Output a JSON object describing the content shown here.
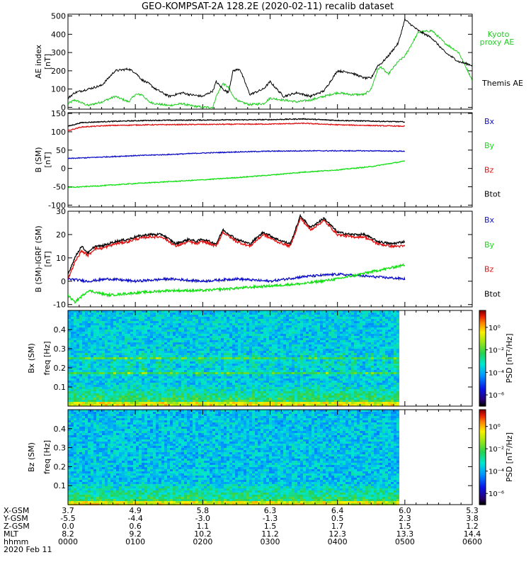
{
  "title": "GEO-KOMPSAT-2A 128.2E (2020-02-11) recalib dataset",
  "colors": {
    "black": "#000000",
    "red": "#e01010",
    "green": "#10e010",
    "blue": "#1010c8",
    "ae_green": "#22cc22"
  },
  "chart_data": [
    {
      "type": "line",
      "id": "ae",
      "ylabel": "AE index [nT]",
      "ylim": [
        -10,
        510
      ],
      "yticks": [
        0,
        100,
        200,
        300,
        400,
        500
      ],
      "xlim": [
        0,
        6
      ],
      "series": [
        {
          "name": "Kyoto proxy AE",
          "legend": [
            "Kyoto",
            "proxy AE"
          ],
          "color": "#22cc22",
          "x": [
            0,
            0.1,
            0.3,
            0.5,
            0.7,
            0.9,
            1.0,
            1.1,
            1.2,
            1.3,
            1.5,
            1.7,
            1.8,
            2.0,
            2.15,
            2.2,
            2.3,
            2.38,
            2.45,
            2.55,
            2.7,
            2.9,
            3.0,
            3.2,
            3.4,
            3.6,
            3.8,
            4.0,
            4.2,
            4.4,
            4.5,
            4.6,
            4.65,
            4.75,
            4.9,
            5.0,
            5.2,
            5.4,
            5.6,
            5.8,
            6.0
          ],
          "values": [
            20,
            40,
            10,
            30,
            60,
            30,
            70,
            70,
            30,
            20,
            10,
            20,
            10,
            0,
            0,
            60,
            130,
            110,
            60,
            30,
            15,
            20,
            50,
            40,
            30,
            40,
            60,
            80,
            70,
            70,
            100,
            210,
            220,
            180,
            250,
            280,
            410,
            420,
            350,
            300,
            150
          ]
        },
        {
          "name": "Themis AE",
          "legend": [
            "Themis AE"
          ],
          "color": "#000000",
          "x": [
            0,
            0.1,
            0.3,
            0.5,
            0.7,
            0.9,
            1.0,
            1.1,
            1.2,
            1.3,
            1.5,
            1.7,
            1.8,
            2.0,
            2.15,
            2.2,
            2.3,
            2.38,
            2.45,
            2.55,
            2.7,
            2.9,
            3.0,
            3.2,
            3.4,
            3.6,
            3.8,
            4.0,
            4.2,
            4.4,
            4.5,
            4.6,
            4.65,
            4.75,
            4.9,
            5.0,
            5.2,
            5.4,
            5.6,
            5.8,
            6.0
          ],
          "values": [
            50,
            80,
            100,
            120,
            200,
            210,
            190,
            150,
            130,
            100,
            60,
            80,
            70,
            60,
            90,
            140,
            100,
            80,
            200,
            210,
            70,
            100,
            140,
            60,
            80,
            60,
            90,
            200,
            190,
            160,
            160,
            230,
            240,
            280,
            350,
            480,
            420,
            380,
            300,
            250,
            230
          ]
        }
      ]
    },
    {
      "type": "line",
      "id": "bsm",
      "ylabel": "B (SM) [nT]",
      "ylim": [
        -105,
        152
      ],
      "yticks": [
        -100,
        -50,
        0,
        50,
        100,
        150
      ],
      "xlim": [
        0,
        6
      ],
      "series": [
        {
          "name": "Btot",
          "color": "#000000",
          "x": [
            0,
            0.2,
            0.6,
            1.2,
            2.0,
            3.0,
            3.5,
            4.0,
            4.5,
            5.0
          ],
          "values": [
            115,
            125,
            128,
            131,
            132,
            133,
            135,
            131,
            129,
            127
          ]
        },
        {
          "name": "Bz",
          "color": "#e01010",
          "x": [
            0,
            0.2,
            0.6,
            1.2,
            2.0,
            3.0,
            3.5,
            4.0,
            4.5,
            5.0
          ],
          "values": [
            103,
            113,
            117,
            119,
            120,
            121,
            123,
            119,
            117,
            115
          ]
        },
        {
          "name": "Bx",
          "color": "#1010c8",
          "x": [
            0,
            0.5,
            1.0,
            1.5,
            2.0,
            2.5,
            3.0,
            3.5,
            4.0,
            4.5,
            5.0
          ],
          "values": [
            27,
            31,
            35,
            38,
            42,
            45,
            47,
            48,
            48,
            48,
            47
          ]
        },
        {
          "name": "By",
          "color": "#10e010",
          "x": [
            0,
            0.5,
            1.0,
            1.5,
            2.0,
            2.5,
            3.0,
            3.5,
            4.0,
            4.5,
            5.0
          ],
          "values": [
            -52,
            -47,
            -41,
            -36,
            -31,
            -25,
            -18,
            -10,
            -4,
            5,
            20
          ]
        }
      ],
      "legend_order": [
        "Bx",
        "By",
        "Bz",
        "Btot"
      ]
    },
    {
      "type": "line",
      "id": "bigrf",
      "ylabel": "B (SM)-IGRF (SM) [nT]",
      "ylim": [
        -11,
        30
      ],
      "yticks": [
        -10,
        0,
        10,
        20,
        30
      ],
      "xlim": [
        0,
        6
      ],
      "series": [
        {
          "name": "Btot",
          "color": "#000000",
          "x": [
            0,
            0.1,
            0.2,
            0.3,
            0.4,
            0.5,
            0.7,
            0.9,
            1.0,
            1.2,
            1.4,
            1.5,
            1.6,
            1.8,
            1.9,
            2.0,
            2.2,
            2.3,
            2.5,
            2.7,
            2.9,
            3.1,
            3.2,
            3.3,
            3.45,
            3.6,
            3.8,
            4.0,
            4.2,
            4.4,
            4.6,
            4.8,
            5.0
          ],
          "values": [
            3,
            10,
            15,
            12,
            15,
            15,
            17,
            18,
            19,
            20,
            20,
            18,
            16,
            18,
            17,
            18,
            16,
            22,
            18,
            16,
            21,
            18,
            17,
            16,
            28,
            23,
            27,
            21,
            20,
            20,
            17,
            16,
            17
          ]
        },
        {
          "name": "Bz",
          "color": "#e01010",
          "x": [
            0,
            0.1,
            0.2,
            0.3,
            0.4,
            0.5,
            0.7,
            0.9,
            1.0,
            1.2,
            1.4,
            1.5,
            1.6,
            1.8,
            1.9,
            2.0,
            2.2,
            2.3,
            2.5,
            2.7,
            2.9,
            3.1,
            3.2,
            3.3,
            3.45,
            3.6,
            3.8,
            4.0,
            4.2,
            4.4,
            4.6,
            4.8,
            5.0
          ],
          "values": [
            1,
            8,
            13,
            11,
            14,
            14,
            16,
            17,
            18,
            19,
            19,
            17,
            15,
            17,
            16,
            17,
            15,
            21,
            17,
            15,
            20,
            17,
            16,
            15,
            27,
            22,
            26,
            20,
            19,
            19,
            16,
            15,
            15
          ]
        },
        {
          "name": "Bx",
          "color": "#1010c8",
          "x": [
            0,
            0.3,
            0.6,
            1.0,
            1.5,
            2.0,
            2.5,
            3.0,
            3.5,
            4.0,
            4.5,
            5.0
          ],
          "values": [
            1,
            0,
            1,
            0,
            1,
            0,
            1,
            0,
            2,
            3,
            2,
            1
          ]
        },
        {
          "name": "By",
          "color": "#10e010",
          "x": [
            0,
            0.1,
            0.3,
            0.6,
            1.0,
            1.5,
            2.0,
            2.5,
            3.0,
            3.5,
            4.0,
            4.5,
            5.0
          ],
          "values": [
            -6,
            -9,
            -4,
            -6,
            -5,
            -4,
            -4,
            -3,
            -2,
            -1,
            1,
            4,
            7
          ]
        }
      ],
      "legend_order": [
        "Bx",
        "By",
        "Bz",
        "Btot"
      ]
    },
    {
      "type": "heatmap",
      "id": "bx_psd",
      "ylabel": "Bx (SM) freq [Hz]",
      "ylim": [
        0,
        0.5
      ],
      "yticks": [
        0.1,
        0.2,
        0.3,
        0.4
      ],
      "x_data_end_hours": 5.0,
      "colorbar_label": "PSD [nT²/Hz]",
      "colorbar_ticks": [
        "10⁰",
        "10⁻²",
        "10⁻⁴",
        "10⁻⁶"
      ],
      "colorbar_ticks_exp": [
        0,
        -2,
        -4,
        -6
      ],
      "colorbar_range_exp": [
        -7,
        1.5
      ],
      "band_freqs": [
        0.17,
        0.25
      ],
      "base_exp": -3.6
    },
    {
      "type": "heatmap",
      "id": "bz_psd",
      "ylabel": "Bz (SM) freq [Hz]",
      "ylim": [
        0,
        0.5
      ],
      "yticks": [
        0.1,
        0.2,
        0.3,
        0.4
      ],
      "x_data_end_hours": 5.0,
      "colorbar_label": "PSD [nT²/Hz]",
      "colorbar_ticks": [
        "10⁰",
        "10⁻²",
        "10⁻⁴",
        "10⁻⁶"
      ],
      "colorbar_ticks_exp": [
        0,
        -2,
        -4,
        -6
      ],
      "colorbar_range_exp": [
        -7,
        1.5
      ],
      "band_freqs": [
        0.165
      ],
      "base_exp": -3.7
    }
  ],
  "orbit_table": {
    "row_labels": [
      "X-GSM",
      "Y-GSM",
      "Z-GSM",
      "MLT",
      "hhmm"
    ],
    "columns": [
      [
        "3.7",
        "-5.5",
        "0.0",
        "8.2",
        "0000"
      ],
      [
        "4.9",
        "-4.4",
        "0.6",
        "9.2",
        "0100"
      ],
      [
        "5.8",
        "-3.0",
        "1.1",
        "10.2",
        "0200"
      ],
      [
        "6.3",
        "-1.3",
        "1.5",
        "11.2",
        "0300"
      ],
      [
        "6.4",
        "0.5",
        "1.7",
        "12.3",
        "0400"
      ],
      [
        "6.0",
        "2.3",
        "1.5",
        "13.3",
        "0500"
      ],
      [
        "5.3",
        "3.8",
        "1.2",
        "14.4",
        "0600"
      ]
    ],
    "date": "2020 Feb 11"
  }
}
